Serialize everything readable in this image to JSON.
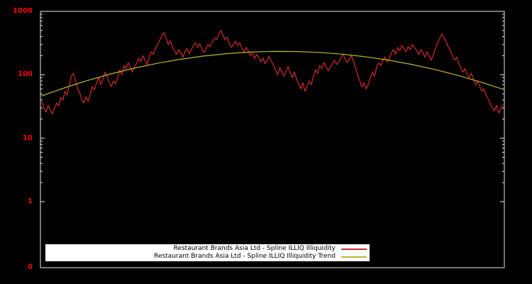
{
  "chart_data": {
    "type": "line",
    "title": "",
    "background": "#000000",
    "border_color": "#e8e8e8",
    "x_axis": {
      "labels_visible": false,
      "tick_labels": []
    },
    "y_axis": {
      "scale": "log",
      "color": "#ff0000",
      "ticks": [
        {
          "label": "1000",
          "value": 1000
        },
        {
          "label": "100",
          "value": 100
        },
        {
          "label": "10",
          "value": 10
        },
        {
          "label": "1",
          "value": 1
        },
        {
          "label": "0",
          "value": 0
        }
      ],
      "range_log": [
        1,
        1000
      ]
    },
    "series": [
      {
        "name": "Restaurant Brands Asia Ltd - Spline ILLIQ Illiquidity",
        "color": "#d22b2b",
        "values": [
          38,
          30,
          26,
          33,
          28,
          24,
          30,
          36,
          32,
          44,
          40,
          55,
          48,
          70,
          95,
          105,
          80,
          60,
          52,
          40,
          36,
          45,
          38,
          50,
          65,
          58,
          75,
          90,
          70,
          85,
          110,
          95,
          75,
          65,
          80,
          72,
          90,
          120,
          100,
          140,
          125,
          155,
          130,
          110,
          135,
          150,
          180,
          160,
          200,
          170,
          145,
          190,
          230,
          210,
          260,
          300,
          350,
          420,
          460,
          380,
          300,
          340,
          280,
          240,
          210,
          250,
          220,
          190,
          230,
          260,
          215,
          250,
          290,
          320,
          270,
          310,
          255,
          225,
          260,
          300,
          280,
          330,
          380,
          360,
          430,
          500,
          420,
          360,
          390,
          310,
          270,
          300,
          340,
          290,
          320,
          260,
          230,
          270,
          240,
          200,
          220,
          180,
          210,
          190,
          160,
          185,
          150,
          170,
          195,
          165,
          140,
          120,
          100,
          130,
          110,
          95,
          115,
          135,
          105,
          90,
          110,
          85,
          70,
          60,
          75,
          55,
          65,
          80,
          70,
          95,
          120,
          105,
          140,
          125,
          155,
          135,
          115,
          130,
          150,
          170,
          145,
          160,
          185,
          210,
          180,
          155,
          175,
          200,
          165,
          130,
          100,
          80,
          65,
          75,
          60,
          70,
          90,
          110,
          95,
          130,
          155,
          140,
          170,
          190,
          160,
          180,
          220,
          250,
          210,
          270,
          240,
          290,
          260,
          230,
          280,
          250,
          300,
          270,
          240,
          210,
          250,
          220,
          190,
          230,
          200,
          170,
          210,
          260,
          320,
          380,
          440,
          390,
          330,
          280,
          240,
          200,
          170,
          190,
          150,
          130,
          110,
          125,
          100,
          90,
          105,
          85,
          70,
          80,
          65,
          55,
          60,
          48,
          42,
          35,
          30,
          27,
          33,
          25,
          29,
          34
        ]
      },
      {
        "name": "Restaurant Brands Asia Ltd - Spline ILLIQ Illiquidity Trend",
        "color": "#b8b82e",
        "values": [
          46.6,
          62.6,
          81.7,
          103.4,
          127.1,
          151.7,
          175.5,
          197.2,
          215.2,
          227.5,
          233.9,
          233.2,
          225.6,
          211.8,
          193.2,
          170.9,
          146.6,
          122.2,
          98.9,
          77.6,
          59.1
        ]
      }
    ]
  },
  "legend": {
    "background": "#ffffff",
    "text_color": "#000000",
    "entries": [
      {
        "label": "Restaurant Brands Asia Ltd - Spline ILLIQ Illiquidity",
        "color": "#d22b2b"
      },
      {
        "label": "Restaurant Brands Asia Ltd - Spline ILLIQ Illiquidity Trend",
        "color": "#b8b82e"
      }
    ]
  }
}
